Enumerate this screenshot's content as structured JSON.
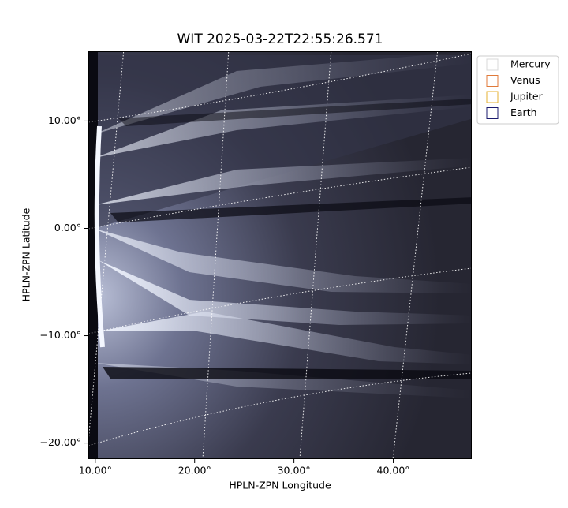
{
  "chart_data": {
    "type": "image",
    "title": "WIT 2025-03-22T22:55:26.571",
    "xlabel": "HPLN-ZPN Longitude",
    "ylabel": "HPLN-ZPN Latitude",
    "xlim": [
      9.3,
      47.9
    ],
    "ylim": [
      -21.5,
      16.5
    ],
    "xticks": [
      {
        "value": 10,
        "label": "10.00°"
      },
      {
        "value": 20,
        "label": "20.00°"
      },
      {
        "value": 30,
        "label": "30.00°"
      },
      {
        "value": 40,
        "label": "40.00°"
      }
    ],
    "yticks": [
      {
        "value": -20,
        "label": "−20.00°"
      },
      {
        "value": -10,
        "label": "−10.00°"
      },
      {
        "value": 0,
        "label": "0.00°"
      },
      {
        "value": 10,
        "label": "10.00°"
      }
    ],
    "legend": [
      {
        "name": "Mercury",
        "color": "#d8d8d8"
      },
      {
        "name": "Venus",
        "color": "#e07a3a"
      },
      {
        "name": "Jupiter",
        "color": "#e6b030"
      },
      {
        "name": "Earth",
        "color": "#1a1a6e"
      }
    ]
  }
}
